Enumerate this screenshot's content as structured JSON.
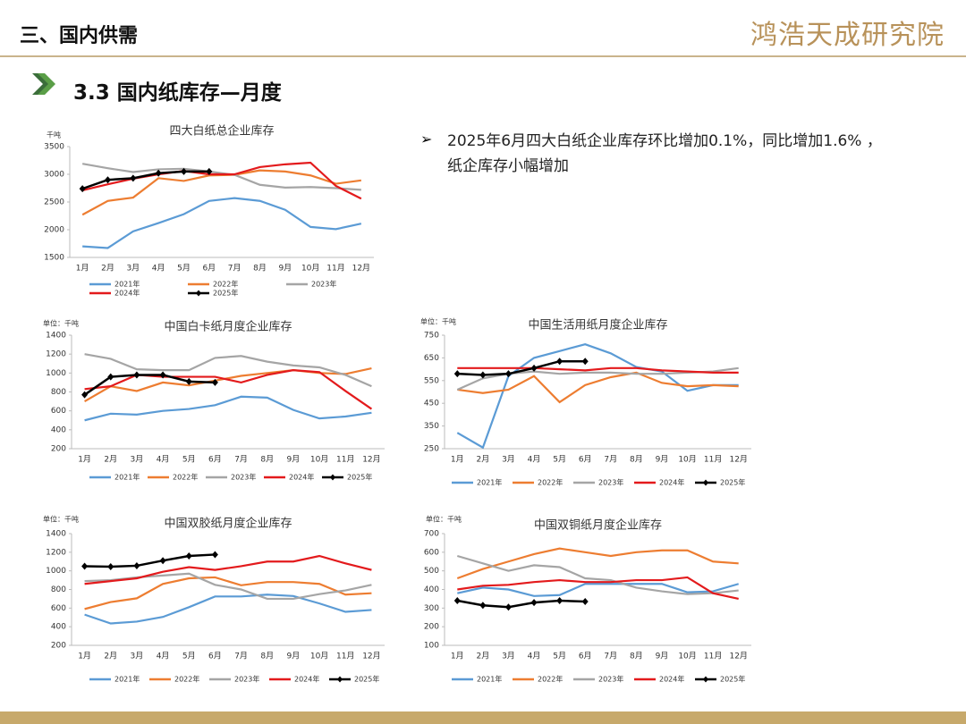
{
  "header": {
    "section": "三、国内供需",
    "logo": "鸿浩天成研究院",
    "subtitle": "3.3 国内纸库存—月度",
    "bullet": "2025年6月四大白纸企业库存环比增加0.1%，同比增加1.6% ，纸企库存小幅增加"
  },
  "chart_data": [
    {
      "type": "line",
      "title": "四大白纸总企业库存",
      "unit": "千吨",
      "categories": [
        "1月",
        "2月",
        "3月",
        "4月",
        "5月",
        "6月",
        "7月",
        "8月",
        "9月",
        "10月",
        "11月",
        "12月"
      ],
      "ylim": [
        1500,
        3500
      ],
      "yticks": [
        1500,
        2000,
        2500,
        3000,
        3500
      ],
      "grid": false,
      "series": [
        {
          "name": "2021年",
          "color": "#5b9bd5",
          "values": [
            1700,
            1670,
            1970,
            2120,
            2280,
            2520,
            2570,
            2520,
            2360,
            2050,
            2010,
            2110
          ]
        },
        {
          "name": "2022年",
          "color": "#ed7d31",
          "values": [
            2270,
            2520,
            2580,
            2930,
            2880,
            2980,
            2990,
            3070,
            3050,
            2980,
            2830,
            2890
          ]
        },
        {
          "name": "2023年",
          "color": "#a5a5a5",
          "values": [
            3190,
            3110,
            3040,
            3090,
            3100,
            3050,
            2990,
            2810,
            2760,
            2770,
            2750,
            2720
          ]
        },
        {
          "name": "2024年",
          "color": "#e31a1c",
          "values": [
            2710,
            2820,
            2920,
            3000,
            3060,
            3000,
            3000,
            3130,
            3180,
            3210,
            2790,
            2560
          ]
        },
        {
          "name": "2025年",
          "color": "#000000",
          "marker": "diamond",
          "values": [
            2740,
            2900,
            2930,
            3020,
            3050,
            3050,
            null,
            null,
            null,
            null,
            null,
            null
          ]
        }
      ]
    },
    {
      "type": "line",
      "title": "中国白卡纸月度企业库存",
      "unit": "单位：千吨",
      "categories": [
        "1月",
        "2月",
        "3月",
        "4月",
        "5月",
        "6月",
        "7月",
        "8月",
        "9月",
        "10月",
        "11月",
        "12月"
      ],
      "ylim": [
        200,
        1400
      ],
      "yticks": [
        200,
        400,
        600,
        800,
        1000,
        1200,
        1400
      ],
      "grid": false,
      "series": [
        {
          "name": "2021年",
          "color": "#5b9bd5",
          "values": [
            500,
            570,
            560,
            600,
            620,
            660,
            750,
            740,
            610,
            520,
            540,
            580
          ]
        },
        {
          "name": "2022年",
          "color": "#ed7d31",
          "values": [
            700,
            860,
            810,
            900,
            870,
            920,
            970,
            1000,
            1030,
            1000,
            990,
            1050
          ]
        },
        {
          "name": "2023年",
          "color": "#a5a5a5",
          "values": [
            1200,
            1150,
            1040,
            1030,
            1030,
            1160,
            1180,
            1120,
            1080,
            1060,
            980,
            860
          ]
        },
        {
          "name": "2024年",
          "color": "#e31a1c",
          "values": [
            830,
            860,
            980,
            960,
            960,
            960,
            900,
            980,
            1030,
            1010,
            810,
            620
          ]
        },
        {
          "name": "2025年",
          "color": "#000000",
          "marker": "diamond",
          "values": [
            770,
            960,
            980,
            980,
            910,
            900,
            null,
            null,
            null,
            null,
            null,
            null
          ]
        }
      ]
    },
    {
      "type": "line",
      "title": "中国生活用纸月度企业库存",
      "unit": "单位：千吨",
      "categories": [
        "1月",
        "2月",
        "3月",
        "4月",
        "5月",
        "6月",
        "7月",
        "8月",
        "9月",
        "10月",
        "11月",
        "12月"
      ],
      "ylim": [
        250,
        750
      ],
      "yticks": [
        250,
        350,
        450,
        550,
        650,
        750
      ],
      "grid": false,
      "series": [
        {
          "name": "2021年",
          "color": "#5b9bd5",
          "values": [
            320,
            255,
            570,
            650,
            680,
            710,
            670,
            610,
            590,
            505,
            530,
            530
          ]
        },
        {
          "name": "2022年",
          "color": "#ed7d31",
          "values": [
            510,
            495,
            510,
            570,
            455,
            530,
            565,
            585,
            540,
            525,
            530,
            525
          ]
        },
        {
          "name": "2023年",
          "color": "#a5a5a5",
          "values": [
            510,
            560,
            580,
            590,
            580,
            585,
            585,
            580,
            580,
            585,
            590,
            605
          ]
        },
        {
          "name": "2024年",
          "color": "#e31a1c",
          "values": [
            605,
            605,
            605,
            605,
            600,
            595,
            605,
            605,
            595,
            590,
            585,
            585
          ]
        },
        {
          "name": "2025年",
          "color": "#000000",
          "marker": "diamond",
          "values": [
            580,
            575,
            580,
            605,
            635,
            635,
            null,
            null,
            null,
            null,
            null,
            null
          ]
        }
      ]
    },
    {
      "type": "line",
      "title": "中国双胶纸月度企业库存",
      "unit": "单位：千吨",
      "categories": [
        "1月",
        "2月",
        "3月",
        "4月",
        "5月",
        "6月",
        "7月",
        "8月",
        "9月",
        "10月",
        "11月",
        "12月"
      ],
      "ylim": [
        200,
        1400
      ],
      "yticks": [
        200,
        400,
        600,
        800,
        1000,
        1200,
        1400
      ],
      "grid": false,
      "series": [
        {
          "name": "2021年",
          "color": "#5b9bd5",
          "values": [
            530,
            435,
            455,
            505,
            610,
            725,
            725,
            745,
            730,
            650,
            560,
            580
          ]
        },
        {
          "name": "2022年",
          "color": "#ed7d31",
          "values": [
            590,
            665,
            705,
            860,
            920,
            930,
            845,
            880,
            880,
            860,
            745,
            760
          ]
        },
        {
          "name": "2023年",
          "color": "#a5a5a5",
          "values": [
            890,
            900,
            930,
            950,
            970,
            850,
            800,
            700,
            700,
            750,
            790,
            850
          ]
        },
        {
          "name": "2024年",
          "color": "#e31a1c",
          "values": [
            860,
            890,
            920,
            990,
            1040,
            1010,
            1050,
            1100,
            1100,
            1160,
            1080,
            1010
          ]
        },
        {
          "name": "2025年",
          "color": "#000000",
          "marker": "diamond",
          "values": [
            1050,
            1045,
            1055,
            1110,
            1160,
            1175,
            null,
            null,
            null,
            null,
            null,
            null
          ]
        }
      ]
    },
    {
      "type": "line",
      "title": "中国双铜纸月度企业库存",
      "unit": "单位：千吨",
      "categories": [
        "1月",
        "2月",
        "3月",
        "4月",
        "5月",
        "6月",
        "7月",
        "8月",
        "9月",
        "10月",
        "11月",
        "12月"
      ],
      "ylim": [
        100,
        700
      ],
      "yticks": [
        100,
        200,
        300,
        400,
        500,
        600,
        700
      ],
      "grid": false,
      "series": [
        {
          "name": "2021年",
          "color": "#5b9bd5",
          "values": [
            380,
            410,
            400,
            365,
            370,
            430,
            430,
            430,
            430,
            385,
            390,
            430
          ]
        },
        {
          "name": "2022年",
          "color": "#ed7d31",
          "values": [
            460,
            510,
            550,
            590,
            620,
            600,
            580,
            600,
            610,
            610,
            550,
            540
          ]
        },
        {
          "name": "2023年",
          "color": "#a5a5a5",
          "values": [
            580,
            540,
            500,
            530,
            520,
            460,
            450,
            410,
            390,
            375,
            380,
            395
          ]
        },
        {
          "name": "2024年",
          "color": "#e31a1c",
          "values": [
            400,
            420,
            425,
            440,
            450,
            440,
            440,
            450,
            450,
            465,
            380,
            350
          ]
        },
        {
          "name": "2025年",
          "color": "#000000",
          "marker": "diamond",
          "values": [
            340,
            315,
            305,
            330,
            340,
            335,
            null,
            null,
            null,
            null,
            null,
            null
          ]
        }
      ]
    }
  ]
}
